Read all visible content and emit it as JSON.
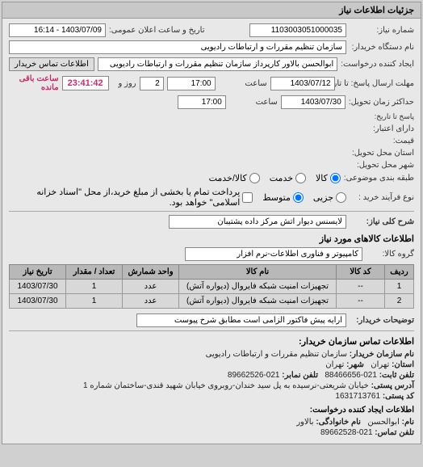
{
  "panel": {
    "title": "جزئیات اطلاعات نیاز"
  },
  "fields": {
    "tracking_label": "شماره نیاز:",
    "tracking_value": "1103003051000035",
    "announce_label": "تاریخ و ساعت اعلان عمومی:",
    "announce_value": "1403/07/09 - 16:14",
    "org_label": "نام دستگاه خریدار:",
    "org_value": "سازمان تنظیم مقررات و ارتباطات رادیویی",
    "requester_label": "ایجاد کننده درخواست:",
    "requester_value": "ابوالحسن بالاور کارپرداز سازمان تنظیم مقررات و ارتباطات رادیویی",
    "contact_btn": "اطلاعات تماس خریدار",
    "deadline_label": "مهلت ارسال پاسخ: تا تاریخ:",
    "deadline_date": "1403/07/12",
    "time_label": "ساعت",
    "deadline_time": "17:00",
    "day_label": "روز و",
    "days_remaining": "2",
    "countdown": "23:41:42",
    "remaining_label": "ساعت باقی مانده",
    "delivery_label": "حداکثر زمان تحویل:",
    "delivery_sublabel": "پاسخ تا تاریخ:",
    "delivery_date": "1403/07/30",
    "delivery_time": "17:00",
    "credit_label": "دارای اعتبار:",
    "price_label": "قیمت:",
    "province_label": "استان محل تحویل:",
    "city_label": "شهر محل تحویل:",
    "category_label": "طبقه بندی موضوعی:",
    "radio_goods": "کالا",
    "radio_service": "خدمت",
    "radio_both": "کالا/خدمت",
    "purchase_label": "نوع فرآیند خرید :",
    "radio_small": "جزیی",
    "radio_medium": "متوسط",
    "check_note": "پرداخت تمام یا بخشی از مبلغ خرید،از محل \"اسناد خزانه اسلامی\" خواهد بود.",
    "subject_label": "شرح کلی نیاز:",
    "subject_value": "لایسنس دیوار آتش مرکز داده پشتیبان",
    "items_title": "اطلاعات کالاهای مورد نیاز",
    "group_label": "گروه کالا:",
    "group_value": "کامپیوتر و فناوری اطلاعات-نرم افزار",
    "desc_label": "توضیحات خریدار:",
    "desc_value": "ارایه پیش فاکتور الزامی است مطابق شرح پیوست",
    "contact_title": "اطلاعات تماس سازمان خریدار:",
    "c_org_label": "نام سازمان خریدار:",
    "c_org_value": "سازمان تنظیم مقررات و ارتباطات رادیویی",
    "c_city_label": "شهر:",
    "c_city_value": "تهران",
    "c_province_label": "استان:",
    "c_province_value": "تهران",
    "c_tel_label": "تلفن ثابت:",
    "c_tel_value": "021-88466656",
    "c_fax_label": "تلفن نمابر:",
    "c_fax_value": "021-89662526",
    "c_addr_label": "آدرس پستی:",
    "c_addr_value": "خیابان شریعتی-نرسیده به پل سید خندان-روبروی خیابان شهید قندی-ساختمان شماره 1",
    "c_post_label": "کد پستی:",
    "c_post_value": "1631713761",
    "creator_title": "اطلاعات ایجاد کننده درخواست:",
    "c_name_label": "نام:",
    "c_name_value": "ابوالحسن",
    "c_family_label": "نام خانوادگی:",
    "c_family_value": "بالاور",
    "c_phone_label": "تلفن تماس:",
    "c_phone_value": "021-89662528"
  },
  "table": {
    "headers": [
      "ردیف",
      "کد کالا",
      "نام کالا",
      "واحد شمارش",
      "تعداد / مقدار",
      "تاریخ نیاز"
    ],
    "rows": [
      [
        "1",
        "--",
        "تجهیزات امنیت شبکه فایروال (دیواره آتش)",
        "عدد",
        "1",
        "1403/07/30"
      ],
      [
        "2",
        "--",
        "تجهیزات امنیت شبکه فایروال (دیواره آتش)",
        "عدد",
        "1",
        "1403/07/30"
      ]
    ],
    "col_widths": [
      "36px",
      "60px",
      "auto",
      "70px",
      "70px",
      "70px"
    ]
  },
  "colors": {
    "panel_bg": "#e8e8e8",
    "header_bg": "#c8c8c8",
    "accent": "#c82c6e"
  }
}
